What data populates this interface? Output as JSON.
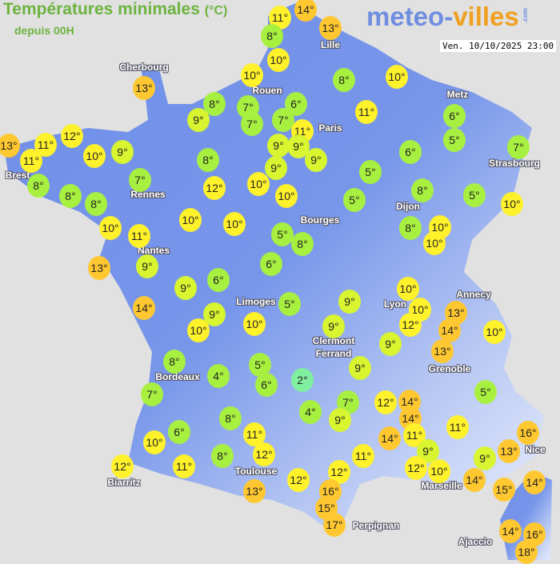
{
  "header": {
    "title": "Températures minimales",
    "title_unit": "(°C)",
    "subtitle": "depuis 00H",
    "logo_part1": "meteo-",
    "logo_part2": "villes",
    "logo_suffix": ".com",
    "timestamp": "Ven. 10/10/2025 23:00"
  },
  "colors": {
    "land": "#6f8ee8",
    "land_relief": "#dfe6fb",
    "sea": "#e1e1e1",
    "very_cold": "#80f0a0",
    "cold": "#a8f040",
    "cool": "#d8f530",
    "mild": "#fff22a",
    "warm": "#ffc830"
  },
  "cities": [
    "Lille",
    "Cherbourg",
    "Rouen",
    "Paris",
    "Metz",
    "Strasbourg",
    "Brest",
    "Rennes",
    "Dijon",
    "Bourges",
    "Nantes",
    "Limoges",
    "Lyon",
    "Annecy",
    "Clermont",
    "Ferrand",
    "Grenoble",
    "Bordeaux",
    "Toulouse",
    "Biarritz",
    "Marseille",
    "Nice",
    "Perpignan",
    "Ajaccio"
  ],
  "readings": [
    "11°",
    "14°",
    "8°",
    "13°",
    "10°",
    "10°",
    "8°",
    "10°",
    "13°",
    "8°",
    "7°",
    "6°",
    "9°",
    "7°",
    "7°",
    "11°",
    "11°",
    "6°",
    "5°",
    "7°",
    "13°",
    "11°",
    "11°",
    "12°",
    "10°",
    "9°",
    "8°",
    "9°",
    "9°",
    "9°",
    "9°",
    "6°",
    "5°",
    "7°",
    "8°",
    "8°",
    "8°",
    "12°",
    "10°",
    "10°",
    "5°",
    "8°",
    "5°",
    "10°",
    "10°",
    "11°",
    "10°",
    "10°",
    "5°",
    "8°",
    "8°",
    "10°",
    "10°",
    "13°",
    "9°",
    "6°",
    "9°",
    "6°",
    "14°",
    "9°",
    "10°",
    "10°",
    "5°",
    "9°",
    "9°",
    "10°",
    "10°",
    "12°",
    "13°",
    "14°",
    "10°",
    "9°",
    "13°",
    "8°",
    "4°",
    "5°",
    "6°",
    "2°",
    "9°",
    "5°",
    "7°",
    "4°",
    "7°",
    "9°",
    "12°",
    "14°",
    "14°",
    "8°",
    "6°",
    "11°",
    "14°",
    "11°",
    "11°",
    "16°",
    "13°",
    "10°",
    "9°",
    "12°",
    "11°",
    "8°",
    "12°",
    "11°",
    "9°",
    "12°",
    "12°",
    "12°",
    "10°",
    "14°",
    "14°",
    "15°",
    "13°",
    "16°",
    "15°",
    "17°",
    "14°",
    "16°",
    "18°"
  ]
}
